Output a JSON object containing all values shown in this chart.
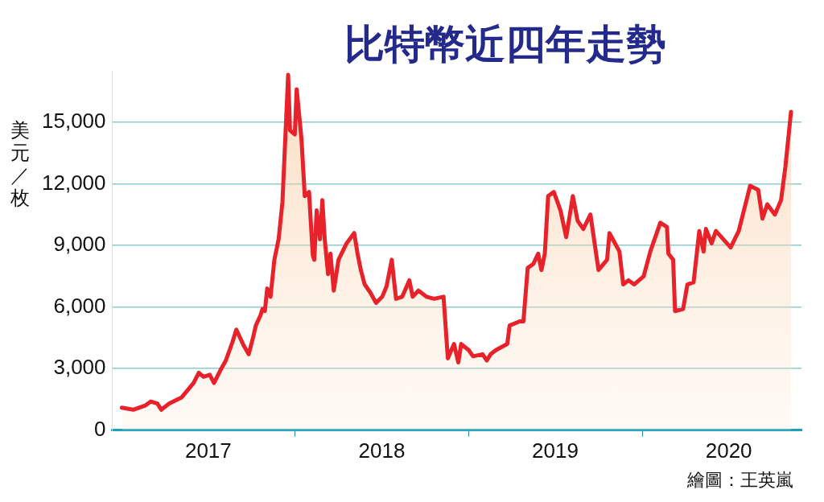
{
  "chart_data": {
    "type": "area",
    "title": "比特幣近四年走勢",
    "ylabel": "美元／枚",
    "annotations": [
      "繪圖：王英嵐"
    ],
    "xlim": [
      "2016-12-12",
      "2020-12-01"
    ],
    "xticks": [
      {
        "value": "2017-07-02",
        "label": "2017"
      },
      {
        "value": "2018-01-01",
        "label": null
      },
      {
        "value": "2018-07-02",
        "label": "2018"
      },
      {
        "value": "2019-01-01",
        "label": null
      },
      {
        "value": "2019-07-02",
        "label": "2019"
      },
      {
        "value": "2020-01-01",
        "label": null
      },
      {
        "value": "2020-07-01",
        "label": "2020"
      }
    ],
    "ylim": [
      0,
      17500
    ],
    "yticks": [
      0,
      {
        "value": 3000,
        "label": "3,000"
      },
      {
        "value": 6000,
        "label": "6,000"
      },
      {
        "value": 9000,
        "label": "9,000"
      },
      {
        "value": 12000,
        "label": "12,000"
      },
      {
        "value": 15000,
        "label": "15,000"
      }
    ],
    "grid": "y",
    "legend": false,
    "series": [
      {
        "color": "#e8222a",
        "x": [
          "2017-01-01",
          "2017-01-25",
          "2017-02-19",
          "2017-03-03",
          "2017-03-17",
          "2017-03-25",
          "2017-04-11",
          "2017-05-07",
          "2017-06-01",
          "2017-06-12",
          "2017-06-22",
          "2017-07-05",
          "2017-07-14",
          "2017-07-27",
          "2017-08-08",
          "2017-08-22",
          "2017-08-30",
          "2017-09-15",
          "2017-09-25",
          "2017-10-03",
          "2017-10-10",
          "2017-10-20",
          "2017-10-24",
          "2017-10-29",
          "2017-11-03",
          "2017-11-10",
          "2017-11-18",
          "2017-11-27",
          "2017-12-05",
          "2017-12-17",
          "2017-12-21",
          "2017-12-31",
          "2018-01-04",
          "2018-01-14",
          "2018-01-21",
          "2018-01-30",
          "2018-02-02",
          "2018-02-07",
          "2018-02-10",
          "2018-02-15",
          "2018-02-22",
          "2018-02-27",
          "2018-03-04",
          "2018-03-11",
          "2018-03-16",
          "2018-03-23",
          "2018-04-02",
          "2018-04-19",
          "2018-05-05",
          "2018-05-12",
          "2018-05-19",
          "2018-05-27",
          "2018-06-08",
          "2018-06-20",
          "2018-07-03",
          "2018-07-12",
          "2018-07-23",
          "2018-08-01",
          "2018-08-14",
          "2018-08-29",
          "2018-09-05",
          "2018-09-17",
          "2018-10-04",
          "2018-10-20",
          "2018-11-09",
          "2018-11-18",
          "2018-12-01",
          "2018-12-10",
          "2018-12-16",
          "2019-01-01",
          "2019-01-10",
          "2019-01-30",
          "2019-02-08",
          "2019-02-16",
          "2019-02-27",
          "2019-03-23",
          "2019-03-28",
          "2019-04-18",
          "2019-04-26",
          "2019-05-05",
          "2019-05-17",
          "2019-05-27",
          "2019-06-03",
          "2019-06-10",
          "2019-06-17",
          "2019-06-29",
          "2019-07-13",
          "2019-07-25",
          "2019-08-08",
          "2019-08-18",
          "2019-08-30",
          "2019-09-14",
          "2019-10-01",
          "2019-10-19",
          "2019-10-24",
          "2019-11-14",
          "2019-11-22",
          "2019-12-03",
          "2019-12-15",
          "2020-01-04",
          "2020-01-18",
          "2020-02-08",
          "2020-02-22",
          "2020-02-25",
          "2020-03-06",
          "2020-03-10",
          "2020-03-27",
          "2020-04-05",
          "2020-04-18",
          "2020-04-30",
          "2020-05-09",
          "2020-05-14",
          "2020-05-26",
          "2020-06-04",
          "2020-07-05",
          "2020-07-22",
          "2020-08-15",
          "2020-09-01",
          "2020-09-10",
          "2020-09-20",
          "2020-10-06",
          "2020-10-19",
          "2020-10-28",
          "2020-11-09"
        ],
        "values": [
          1100,
          1000,
          1200,
          1400,
          1300,
          1000,
          1300,
          1600,
          2300,
          2800,
          2600,
          2700,
          2300,
          2900,
          3400,
          4300,
          4900,
          4100,
          3700,
          4400,
          5100,
          5600,
          5900,
          5800,
          6900,
          6500,
          8300,
          9300,
          11100,
          17300,
          14600,
          14400,
          16600,
          14200,
          11400,
          11600,
          10400,
          8500,
          8300,
          10700,
          9300,
          11200,
          9300,
          7600,
          8600,
          6800,
          8300,
          9100,
          9600,
          8600,
          7800,
          7100,
          6700,
          6200,
          6500,
          7000,
          8300,
          6400,
          6500,
          7300,
          6500,
          6800,
          6500,
          6400,
          6500,
          3500,
          4200,
          3300,
          4200,
          3900,
          3600,
          3700,
          3400,
          3700,
          3900,
          4200,
          5100,
          5300,
          5300,
          7900,
          8100,
          8600,
          7800,
          8600,
          11400,
          11600,
          10700,
          9400,
          11400,
          10200,
          9800,
          10500,
          7800,
          8300,
          9600,
          8700,
          7100,
          7300,
          7100,
          7500,
          8700,
          10100,
          9900,
          8600,
          8300,
          5800,
          5900,
          7100,
          7200,
          9700,
          8700,
          9800,
          9100,
          9700,
          8900,
          9700,
          11900,
          11700,
          10300,
          11000,
          10500,
          11200,
          12800,
          15500
        ]
      }
    ]
  }
}
